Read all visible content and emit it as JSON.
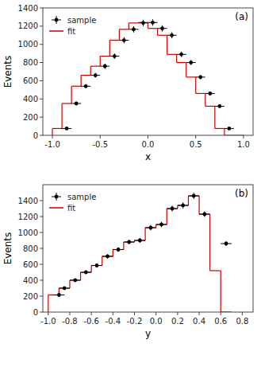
{
  "chart_data": [
    {
      "type": "histogram",
      "annotation": "(a)",
      "x_label": "x",
      "y_label": "Events",
      "xlim": [
        -1.1,
        1.1
      ],
      "ylim": [
        0,
        1400
      ],
      "xticks": [
        {
          "value": -1.0,
          "label": "-1.0"
        },
        {
          "value": -0.5,
          "label": "-0.5"
        },
        {
          "value": 0.0,
          "label": "0.0"
        },
        {
          "value": 0.5,
          "label": "0.5"
        },
        {
          "value": 1.0,
          "label": "1.0"
        }
      ],
      "yticks": [
        0,
        200,
        400,
        600,
        800,
        1000,
        1200,
        1400
      ],
      "grid": false,
      "legend": "top-left",
      "series": [
        {
          "name": "sample",
          "type": "errorbar",
          "color": "black",
          "marker": "circle",
          "x": [
            -0.85,
            -0.75,
            -0.65,
            -0.55,
            -0.45,
            -0.35,
            -0.25,
            -0.15,
            -0.05,
            0.05,
            0.15,
            0.25,
            0.35,
            0.45,
            0.55,
            0.65,
            0.75,
            0.85
          ],
          "values": [
            75,
            350,
            540,
            660,
            760,
            870,
            1045,
            1165,
            1235,
            1240,
            1175,
            1100,
            890,
            800,
            640,
            460,
            320,
            75
          ],
          "yerr": [
            9,
            19,
            23,
            26,
            28,
            30,
            32,
            34,
            35,
            35,
            34,
            33,
            30,
            28,
            25,
            21,
            18,
            9
          ],
          "xerr": 0.05
        },
        {
          "name": "fit",
          "type": "step",
          "color": "#cc0000",
          "line_style": "solid",
          "bins": [
            -1.0,
            -0.9,
            -0.8,
            -0.7,
            -0.6,
            -0.5,
            -0.4,
            -0.3,
            -0.2,
            -0.1,
            0.0,
            0.1,
            0.2,
            0.3,
            0.4,
            0.5,
            0.6,
            0.7,
            0.8,
            0.9,
            1.0
          ],
          "values": [
            75,
            350,
            540,
            660,
            760,
            870,
            1045,
            1165,
            1235,
            1240,
            1175,
            1100,
            890,
            800,
            640,
            460,
            320,
            75,
            0,
            0
          ]
        }
      ]
    },
    {
      "type": "histogram",
      "annotation": "(b)",
      "x_label": "y",
      "y_label": "Events",
      "xlim": [
        -1.05,
        0.9
      ],
      "ylim": [
        0,
        1600
      ],
      "xticks": [
        {
          "value": -1.0,
          "label": "-1.0"
        },
        -0.8,
        -0.6,
        -0.4,
        -0.2,
        {
          "value": 0.0,
          "label": "0.0"
        },
        0.2,
        0.4,
        0.6,
        0.8
      ],
      "yticks": [
        0,
        200,
        400,
        600,
        800,
        1000,
        1200,
        1400
      ],
      "grid": false,
      "legend": "top-left",
      "series": [
        {
          "name": "sample",
          "type": "errorbar",
          "color": "black",
          "marker": "circle",
          "x": [
            -0.9,
            -0.85,
            -0.75,
            -0.65,
            -0.55,
            -0.45,
            -0.35,
            -0.25,
            -0.15,
            -0.05,
            0.05,
            0.15,
            0.25,
            0.35,
            0.45,
            0.65
          ],
          "values": [
            215,
            300,
            400,
            500,
            585,
            700,
            785,
            880,
            900,
            1060,
            1100,
            1300,
            1340,
            1460,
            1230,
            860
          ],
          "yerr": [
            15,
            17,
            20,
            22,
            24,
            26,
            28,
            30,
            30,
            33,
            33,
            36,
            37,
            38,
            35,
            29
          ],
          "xerr": 0.05
        },
        {
          "name": "fit",
          "type": "step",
          "color": "#cc0000",
          "line_style": "solid",
          "bins": [
            -1.0,
            -0.9,
            -0.8,
            -0.7,
            -0.6,
            -0.5,
            -0.4,
            -0.3,
            -0.2,
            -0.1,
            0.0,
            0.1,
            0.2,
            0.3,
            0.4,
            0.5,
            0.6,
            0.7
          ],
          "values": [
            215,
            300,
            400,
            500,
            585,
            700,
            785,
            880,
            900,
            1060,
            1100,
            1300,
            1340,
            1460,
            1230,
            520,
            0
          ]
        }
      ]
    }
  ]
}
